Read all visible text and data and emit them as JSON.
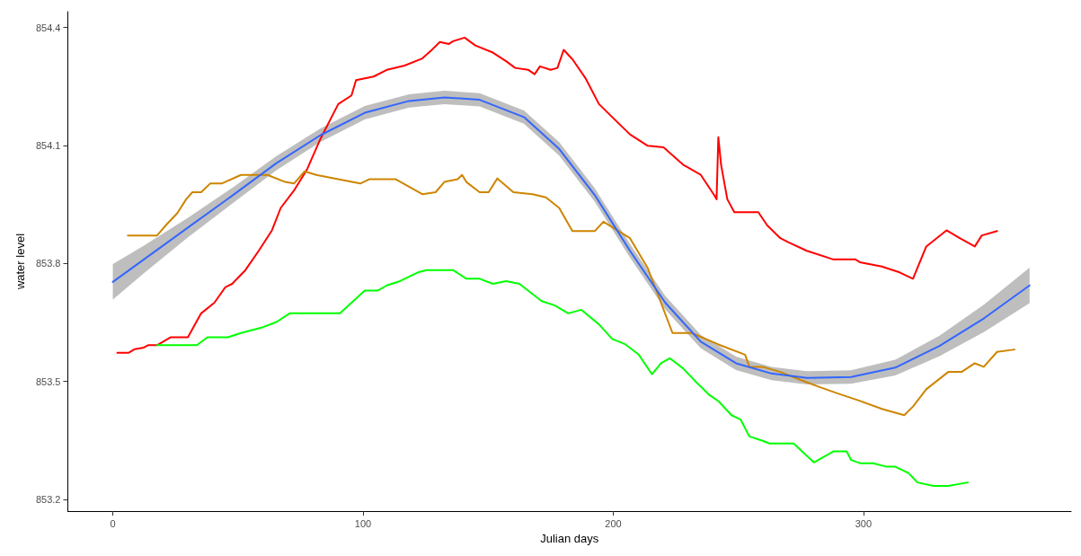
{
  "chart_data": {
    "type": "line",
    "xlabel": "Julian days",
    "ylabel": "water level",
    "xlim": [
      -18,
      383
    ],
    "ylim": [
      853.17,
      854.44
    ],
    "xticks": [
      0,
      100,
      200,
      300
    ],
    "yticks": [
      853.2,
      853.5,
      853.8,
      854.1,
      854.4
    ],
    "grid": false,
    "marker": "none",
    "line_style": "solid",
    "series": [
      {
        "color": "#ff0000",
        "x": [
          1.8,
          6.4,
          8.8,
          12.4,
          14.1,
          17.7,
          23,
          30,
          35.3,
          40.6,
          44.9,
          47.7,
          53,
          58.3,
          63.6,
          67.1,
          72.4,
          77.7,
          83,
          90.1,
          95.4,
          97.2,
          104.2,
          109.5,
          116.6,
          123.7,
          127.2,
          130.7,
          134.3,
          136,
          140.6,
          144.9,
          151.9,
          157.2,
          160.8,
          166.1,
          168.6,
          170.7,
          175,
          177.7,
          180.2,
          183.7,
          189,
          194.3,
          199.6,
          206.7,
          213.8,
          220.1,
          227.9,
          235,
          240.3,
          241.3,
          242,
          243.1,
          245.6,
          248.4,
          258,
          261.5,
          266.8,
          270.3,
          277.4,
          288,
          296.8,
          298.6,
          307.4,
          314.5,
          319.8,
          325.1,
          333.2,
          338.5,
          344.5,
          347.3,
          353.4
        ],
        "values": [
          853.573,
          853.573,
          853.582,
          853.586,
          853.592,
          853.592,
          853.612,
          853.612,
          853.673,
          853.7,
          853.739,
          853.748,
          853.783,
          853.832,
          853.884,
          853.941,
          853.985,
          854.04,
          854.117,
          854.205,
          854.227,
          854.266,
          854.275,
          854.292,
          854.303,
          854.321,
          854.341,
          854.363,
          854.358,
          854.365,
          854.374,
          854.354,
          854.336,
          854.314,
          854.297,
          854.292,
          854.281,
          854.301,
          854.292,
          854.297,
          854.343,
          854.319,
          854.27,
          854.205,
          854.172,
          854.128,
          854.099,
          854.095,
          854.051,
          854.025,
          853.974,
          853.963,
          854.121,
          854.051,
          853.963,
          853.93,
          853.93,
          853.897,
          853.864,
          853.853,
          853.832,
          853.81,
          853.81,
          853.803,
          853.792,
          853.777,
          853.761,
          853.843,
          853.884,
          853.864,
          853.843,
          853.871,
          853.882
        ]
      },
      {
        "color": "#cd8500",
        "x": [
          6,
          17.7,
          21.2,
          25.8,
          29.3,
          31.8,
          35.3,
          38.9,
          43.5,
          51.2,
          61.8,
          68.9,
          72.4,
          76.7,
          81.3,
          98.9,
          102.5,
          113.1,
          123.7,
          129,
          132.5,
          137.8,
          139.6,
          141.3,
          146.6,
          150.2,
          153.7,
          160.1,
          167.8,
          173.1,
          178.4,
          183.7,
          192.6,
          196.1,
          206.7,
          213.8,
          223.7,
          231.4,
          242,
          252.7,
          254.4,
          259.7,
          266.8,
          275.6,
          282.7,
          289.8,
          297.9,
          307.4,
          316.3,
          319.8,
          325.1,
          333.9,
          339.2,
          344.5,
          348.1,
          353.4,
          360.4
        ],
        "values": [
          853.871,
          853.871,
          853.897,
          853.928,
          853.963,
          853.981,
          853.981,
          854.003,
          854.003,
          854.025,
          854.025,
          854.007,
          854.003,
          854.034,
          854.025,
          854.003,
          854.014,
          854.014,
          853.976,
          853.981,
          854.007,
          854.014,
          854.025,
          854.007,
          853.981,
          853.981,
          854.016,
          853.981,
          853.976,
          853.968,
          853.941,
          853.882,
          853.882,
          853.906,
          853.864,
          853.788,
          853.623,
          853.623,
          853.594,
          853.568,
          853.537,
          853.537,
          853.524,
          853.502,
          853.485,
          853.469,
          853.452,
          853.43,
          853.414,
          853.436,
          853.48,
          853.524,
          853.524,
          853.546,
          853.537,
          853.575,
          853.581
        ]
      },
      {
        "color": "#00ff00",
        "x": [
          17.7,
          33.6,
          37.8,
          45.9,
          51.2,
          60.1,
          65.4,
          70.7,
          90.8,
          100.7,
          106,
          109.5,
          114.8,
          121.9,
          125.4,
          136,
          141.3,
          146.6,
          151.9,
          157.2,
          162.5,
          171.4,
          176.7,
          182,
          187.3,
          194.3,
          199.6,
          204.9,
          210.2,
          215.5,
          219.1,
          222.6,
          227.9,
          233.2,
          238.5,
          242,
          247.3,
          250.9,
          254.4,
          259.7,
          262.5,
          272.1,
          280.2,
          288,
          293.3,
          295.1,
          298.6,
          303.9,
          309.2,
          312.7,
          318,
          321.6,
          328,
          333.9,
          341.7
        ],
        "values": [
          853.592,
          853.592,
          853.612,
          853.612,
          853.623,
          853.638,
          853.651,
          853.673,
          853.673,
          853.731,
          853.731,
          853.744,
          853.755,
          853.777,
          853.783,
          853.783,
          853.761,
          853.761,
          853.748,
          853.755,
          853.748,
          853.704,
          853.693,
          853.673,
          853.682,
          853.645,
          853.608,
          853.594,
          853.568,
          853.518,
          853.546,
          853.559,
          853.533,
          853.498,
          853.465,
          853.45,
          853.414,
          853.403,
          853.36,
          853.349,
          853.342,
          853.342,
          853.294,
          853.322,
          853.322,
          853.3,
          853.292,
          853.292,
          853.283,
          853.283,
          853.267,
          853.243,
          853.234,
          853.234,
          853.243
        ]
      },
      {
        "color": "#3366ff",
        "x": [
          0,
          12.4,
          30,
          47.7,
          65.4,
          83,
          100.7,
          118.4,
          132.5,
          146.6,
          164.3,
          178.4,
          192.6,
          206.7,
          220.8,
          235,
          249.1,
          263.3,
          277.4,
          295,
          312.7,
          330.4,
          348.1,
          366.4
        ],
        "values": [
          853.753,
          853.81,
          853.891,
          853.972,
          854.055,
          854.126,
          854.183,
          854.213,
          854.222,
          854.216,
          854.172,
          854.091,
          853.974,
          853.832,
          853.7,
          853.601,
          853.546,
          853.52,
          853.509,
          853.511,
          853.535,
          853.59,
          853.66,
          853.744
        ],
        "lower": [
          853.708,
          853.775,
          853.866,
          853.952,
          854.037,
          854.109,
          854.166,
          854.196,
          854.205,
          854.199,
          854.155,
          854.074,
          853.957,
          853.815,
          853.683,
          853.584,
          853.529,
          853.503,
          853.492,
          853.494,
          853.515,
          853.564,
          853.625,
          853.699
        ],
        "upper": [
          853.798,
          853.845,
          853.916,
          853.992,
          854.073,
          854.143,
          854.2,
          854.23,
          854.239,
          854.233,
          854.189,
          854.108,
          853.991,
          853.849,
          853.717,
          853.618,
          853.563,
          853.537,
          853.526,
          853.528,
          853.555,
          853.616,
          853.695,
          853.789
        ]
      }
    ]
  }
}
